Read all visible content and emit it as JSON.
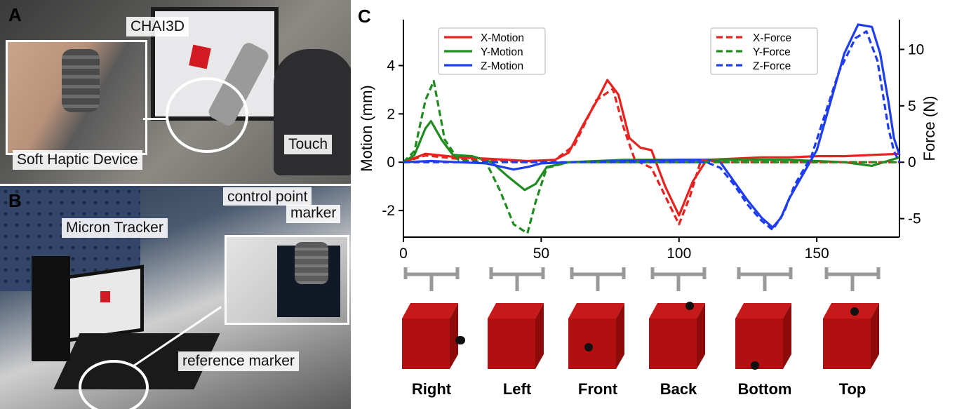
{
  "panels": {
    "a": {
      "letter": "A",
      "labels": {
        "chai": "CHAI3D",
        "soft": "Soft Haptic Device",
        "touch": "Touch"
      }
    },
    "b": {
      "letter": "B",
      "labels": {
        "micron": "Micron Tracker",
        "control1": "control point",
        "control2": "marker",
        "reference": "reference marker"
      }
    },
    "c": {
      "letter": "C"
    }
  },
  "chart_data": {
    "type": "line",
    "xlabel": "",
    "ylabel_left": "Motion (mm)",
    "ylabel_right": "Force (N)",
    "xlim": [
      0,
      180
    ],
    "ylim_left": [
      -3.1,
      5.9
    ],
    "ylim_right": [
      -6.64,
      12.64
    ],
    "xticks": [
      "0",
      "50",
      "100",
      "150"
    ],
    "yticks_left": [
      "-2",
      "0",
      "2",
      "4"
    ],
    "yticks_right": [
      "-5",
      "0",
      "5",
      "10"
    ],
    "legend_left": [
      "X-Motion",
      "Y-Motion",
      "Z-Motion"
    ],
    "legend_right": [
      "X-Force",
      "Y-Force",
      "Z-Force"
    ],
    "colors": {
      "x": "#e8221e",
      "y": "#1f8c1f",
      "z": "#1e3df0"
    },
    "segments": [
      "Right",
      "Left",
      "Front",
      "Back",
      "Bottom",
      "Top"
    ],
    "series": [
      {
        "name": "X-Motion",
        "axis": "left",
        "style": "solid",
        "color": "#e8221e",
        "x": [
          0,
          8,
          12,
          20,
          30,
          45,
          55,
          60,
          65,
          70,
          74,
          78,
          82,
          86,
          90,
          95,
          100,
          105,
          110,
          120,
          130,
          140,
          150,
          160,
          170,
          180
        ],
        "y": [
          0,
          0.35,
          0.3,
          0.2,
          0.15,
          0.05,
          0.1,
          0.4,
          1.5,
          2.5,
          3.4,
          2.8,
          1,
          0.6,
          0.5,
          -1,
          -2.2,
          -0.8,
          0.1,
          0.15,
          0.2,
          0.2,
          0.25,
          0.25,
          0.3,
          0.35
        ]
      },
      {
        "name": "Y-Motion",
        "axis": "left",
        "style": "solid",
        "color": "#1f8c1f",
        "x": [
          0,
          4,
          8,
          10,
          14,
          18,
          25,
          32,
          38,
          44,
          48,
          52,
          60,
          80,
          100,
          120,
          140,
          160,
          170,
          180
        ],
        "y": [
          0,
          0.3,
          1.4,
          1.7,
          0.9,
          0.3,
          0.25,
          0,
          -0.6,
          -1.15,
          -0.9,
          -0.2,
          0,
          0.1,
          0.1,
          0.1,
          0.1,
          0,
          -0.15,
          0.2
        ]
      },
      {
        "name": "Z-Motion",
        "axis": "left",
        "style": "solid",
        "color": "#1e3df0",
        "x": [
          0,
          10,
          20,
          30,
          40,
          45,
          50,
          60,
          80,
          100,
          110,
          115,
          120,
          125,
          130,
          134,
          137,
          140,
          145,
          150,
          155,
          160,
          165,
          170,
          173,
          176,
          178,
          180
        ],
        "y": [
          0,
          0.05,
          0,
          -0.05,
          -0.3,
          -0.2,
          -0.05,
          0,
          0.05,
          0.1,
          0.1,
          0,
          -0.8,
          -1.6,
          -2.3,
          -2.7,
          -2.3,
          -1.5,
          -0.5,
          0.5,
          2.5,
          4.5,
          5.7,
          5.6,
          4.5,
          2.5,
          1,
          0.3
        ]
      },
      {
        "name": "X-Force",
        "axis": "right",
        "style": "dashed",
        "color": "#e8221e",
        "x": [
          0,
          8,
          12,
          20,
          30,
          45,
          55,
          62,
          66,
          70,
          76,
          80,
          84,
          90,
          95,
          100,
          104,
          108,
          115,
          130,
          150,
          180
        ],
        "y": [
          0,
          0.6,
          0.5,
          0.3,
          0.2,
          0,
          0.2,
          1.5,
          3.5,
          5.5,
          6.5,
          3,
          0.2,
          -0.5,
          -3,
          -5.5,
          -3,
          0.2,
          0,
          0,
          0,
          0
        ]
      },
      {
        "name": "Y-Force",
        "axis": "right",
        "style": "dashed",
        "color": "#1f8c1f",
        "x": [
          0,
          4,
          8,
          11,
          15,
          20,
          30,
          35,
          40,
          45,
          48,
          52,
          60,
          100,
          140,
          170,
          180
        ],
        "y": [
          0,
          1,
          5.5,
          7.2,
          2,
          0.2,
          0,
          -2.5,
          -5.5,
          -6.3,
          -3.5,
          -0.5,
          0,
          0,
          0,
          0,
          0
        ]
      },
      {
        "name": "Z-Force",
        "axis": "right",
        "style": "dashed",
        "color": "#1e3df0",
        "x": [
          0,
          20,
          40,
          60,
          80,
          110,
          115,
          120,
          125,
          130,
          134,
          138,
          142,
          148,
          152,
          158,
          164,
          168,
          172,
          176,
          178,
          180
        ],
        "y": [
          0,
          0,
          0,
          0,
          0,
          0,
          -0.5,
          -2,
          -3.8,
          -5.2,
          -6,
          -4.5,
          -2,
          0.5,
          3.5,
          8,
          11,
          11.6,
          9,
          3,
          1,
          0
        ]
      }
    ]
  }
}
